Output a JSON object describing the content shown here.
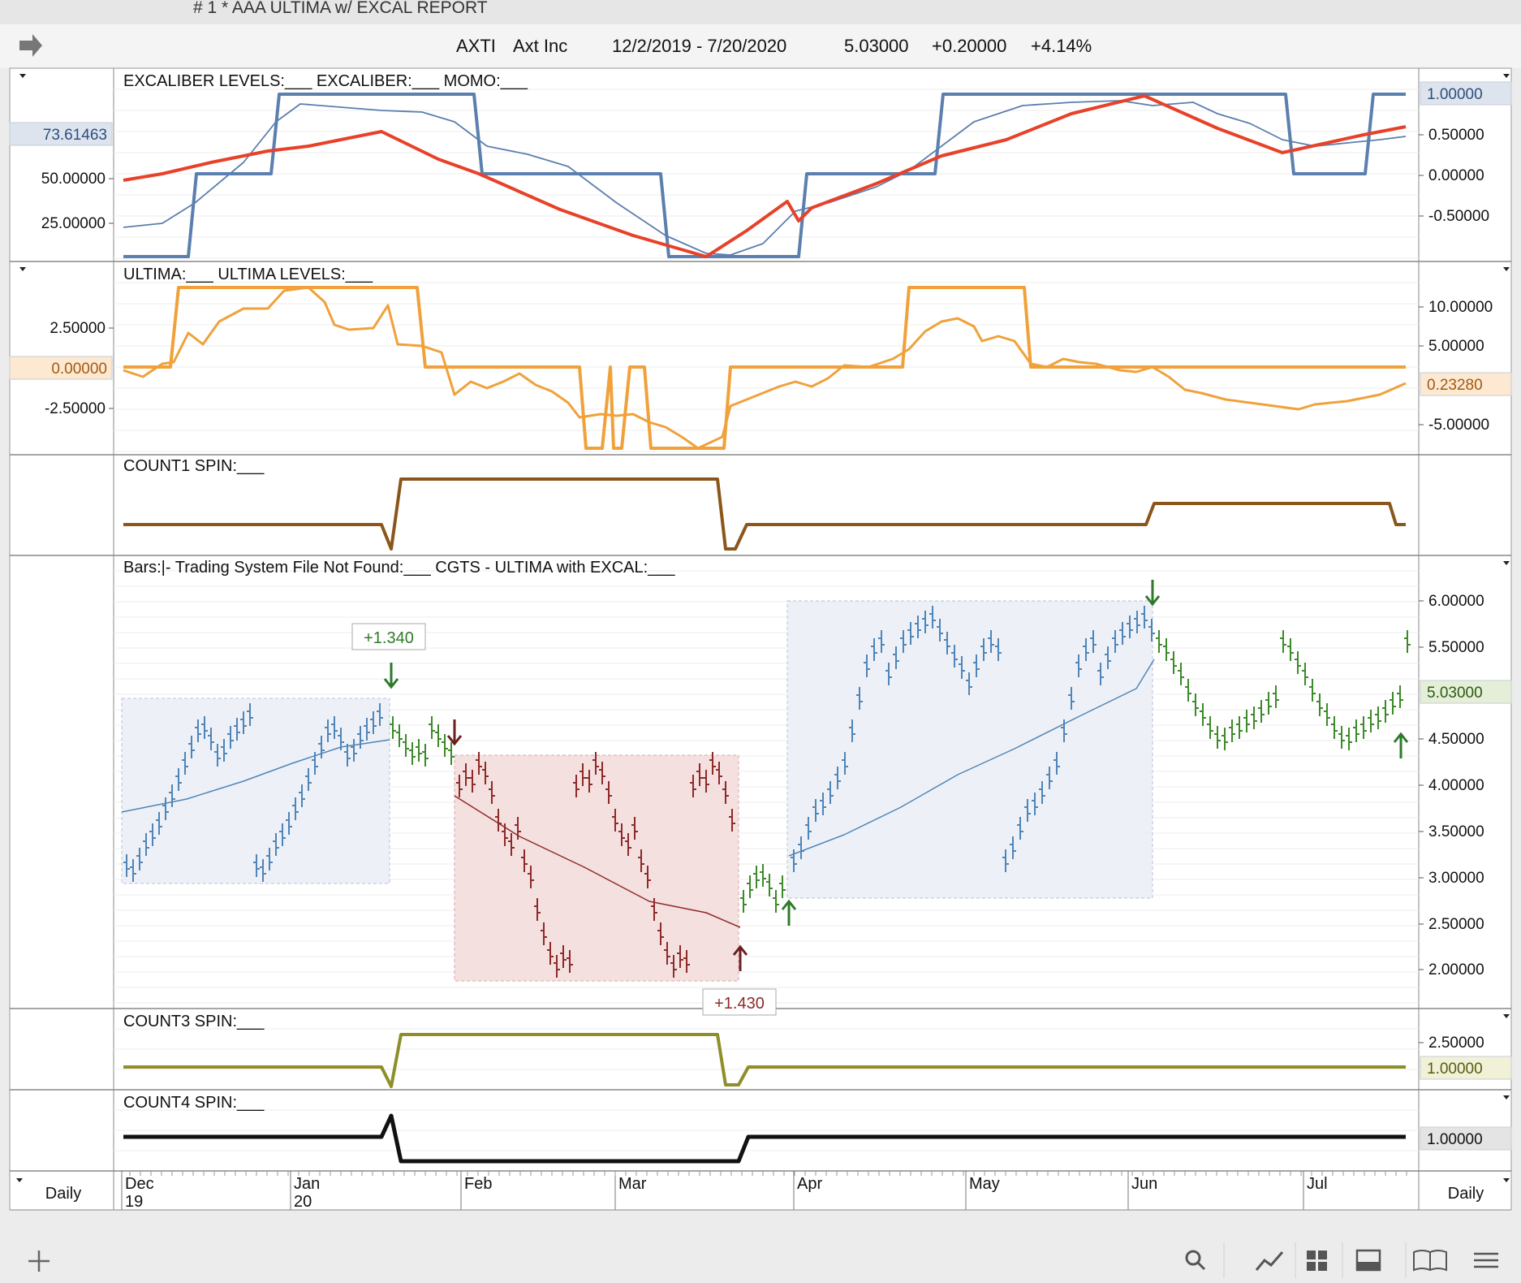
{
  "window": {
    "title": "# 1 * AAA ULTIMA w/ EXCAL REPORT"
  },
  "header": {
    "symbol": "AXTI",
    "company": "Axt Inc",
    "date_range": "12/2/2019 - 7/20/2020",
    "last_price": "5.03000",
    "change": "+0.20000",
    "change_pct": "+4.14%"
  },
  "panes": {
    "excal": {
      "legend": "EXCALIBER LEVELS:___     EXCALIBER:___     MOMO:___",
      "left_axis": [
        "50.00000",
        "25.00000"
      ],
      "left_badge": "73.61463",
      "right_axis": [
        "0.50000",
        "0.00000",
        "-0.50000"
      ],
      "right_badge": "1.00000"
    },
    "ultima": {
      "legend": "ULTIMA:___     ULTIMA LEVELS:___",
      "left_axis": [
        "2.50000",
        "-2.50000"
      ],
      "left_badge": "0.00000",
      "right_axis": [
        "10.00000",
        "5.00000",
        "-5.00000"
      ],
      "right_badge": "0.23280"
    },
    "count1": {
      "legend": "COUNT1 SPIN:___"
    },
    "price": {
      "legend": "Bars:|-     Trading System File Not Found:___     CGTS - ULTIMA with EXCAL:___",
      "right_axis": [
        "6.00000",
        "5.50000",
        "4.50000",
        "4.00000",
        "3.50000",
        "3.00000",
        "2.50000",
        "2.00000"
      ],
      "right_badge": "5.03000",
      "trade_labels": [
        "+1.340",
        "+1.430"
      ]
    },
    "count3": {
      "legend": "COUNT3 SPIN:___",
      "right_axis": [
        "2.50000"
      ],
      "right_badge": "1.00000"
    },
    "count4": {
      "legend": "COUNT4 SPIN:___",
      "right_badge": "1.00000"
    }
  },
  "time_axis": {
    "months": [
      "Dec",
      "Jan",
      "Feb",
      "Mar",
      "Apr",
      "May",
      "Jun",
      "Jul"
    ],
    "years": [
      "19",
      "20"
    ],
    "period_left": "Daily",
    "period_right": "Daily"
  },
  "colors": {
    "excal_levels": "#5b7fae",
    "momo": "#e8412a",
    "ultima": "#f0a13a",
    "count1": "#8b561b",
    "count3": "#8e8e2a",
    "count4": "#111111",
    "bars_up": "#4f85b8",
    "bars_down": "#8f2a2a",
    "bars_neutral": "#3d8a2a"
  },
  "toolbar": {
    "icons": [
      "add-icon",
      "search-icon",
      "line-chart-icon",
      "grid-icon",
      "panel-icon",
      "book-icon",
      "menu-icon"
    ]
  }
}
